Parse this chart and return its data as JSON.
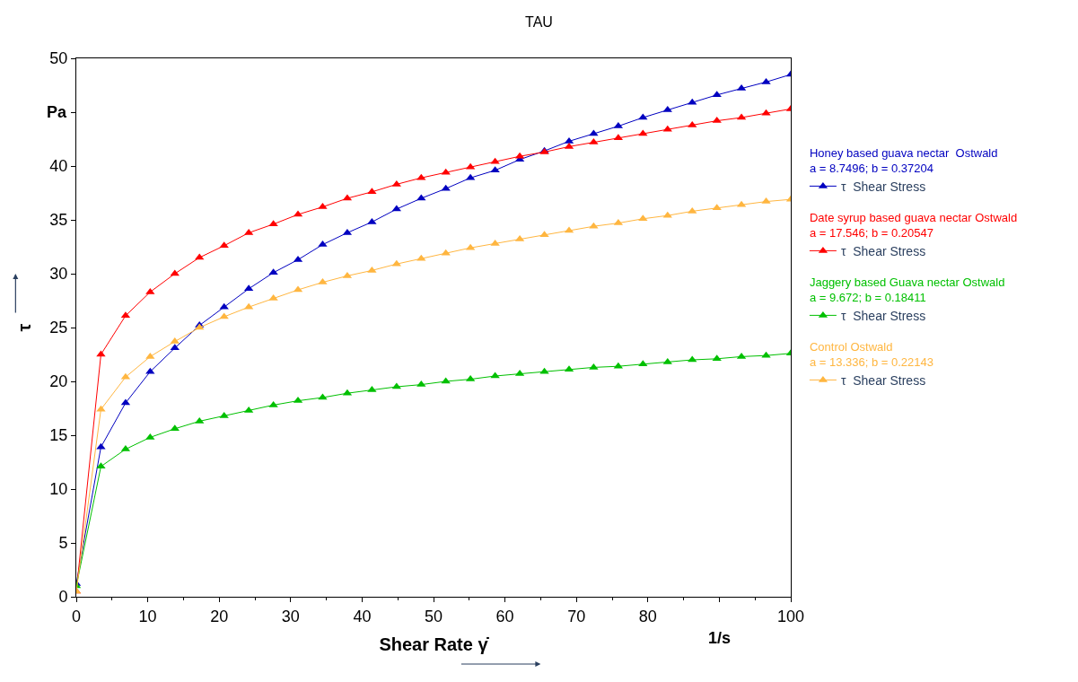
{
  "chart_data": {
    "type": "line",
    "title": "TAU",
    "xlabel": "Shear Rate γ̇",
    "ylabel": "τ",
    "x": [
      0,
      3.45,
      6.9,
      10.34,
      13.79,
      17.24,
      20.69,
      24.14,
      27.59,
      31.03,
      34.48,
      37.93,
      41.38,
      44.83,
      48.28,
      51.72,
      55.17,
      58.62,
      62.07,
      65.52,
      68.97,
      72.41,
      75.86,
      79.31,
      82.76,
      86.21,
      89.66,
      93.1,
      96.55,
      100
    ],
    "series": [
      {
        "name": "τ  Shear Stress",
        "color": "#0000c0",
        "values": [
          1.2,
          13.9,
          18.0,
          20.9,
          23.1,
          25.2,
          26.9,
          28.6,
          30.1,
          31.3,
          32.7,
          33.8,
          34.8,
          36.0,
          37.0,
          37.9,
          38.9,
          39.6,
          40.6,
          41.4,
          42.3,
          43.0,
          43.7,
          44.5,
          45.2,
          45.9,
          46.6,
          47.2,
          47.8,
          48.5
        ]
      },
      {
        "name": "τ  Shear Stress",
        "color": "#ff0000",
        "values": [
          0.5,
          22.5,
          26.1,
          28.3,
          30.0,
          31.5,
          32.6,
          33.8,
          34.6,
          35.5,
          36.2,
          37.0,
          37.6,
          38.3,
          38.9,
          39.4,
          39.9,
          40.4,
          40.9,
          41.3,
          41.8,
          42.2,
          42.6,
          43.0,
          43.4,
          43.8,
          44.2,
          44.5,
          44.9,
          45.3
        ]
      },
      {
        "name": "τ  Shear Stress",
        "color": "#00c000",
        "values": [
          1.0,
          12.1,
          13.7,
          14.8,
          15.6,
          16.3,
          16.8,
          17.3,
          17.8,
          18.2,
          18.5,
          18.9,
          19.2,
          19.5,
          19.7,
          20.0,
          20.2,
          20.5,
          20.7,
          20.9,
          21.1,
          21.3,
          21.4,
          21.6,
          21.8,
          22.0,
          22.1,
          22.3,
          22.4,
          22.6
        ]
      },
      {
        "name": "τ  Shear Stress",
        "color": "#ffb640",
        "values": [
          0.5,
          17.4,
          20.4,
          22.3,
          23.7,
          25.0,
          26.0,
          26.9,
          27.7,
          28.5,
          29.2,
          29.8,
          30.3,
          30.9,
          31.4,
          31.9,
          32.4,
          32.8,
          33.2,
          33.6,
          34.0,
          34.4,
          34.7,
          35.1,
          35.4,
          35.8,
          36.1,
          36.4,
          36.7,
          36.9
        ]
      }
    ],
    "xlim": [
      0,
      100
    ],
    "xticks": [
      0,
      10,
      20,
      30,
      40,
      50,
      60,
      70,
      80,
      {
        "value": 90,
        "label": null
      },
      100
    ],
    "ylim": [
      0,
      50
    ],
    "yticks": [
      0,
      5,
      10,
      15,
      20,
      25,
      30,
      35,
      40,
      {
        "value": 45,
        "label": null
      },
      50
    ],
    "annotations": [
      "Honey based guava nectar  Ostwald",
      "a = 8.7496; b = 0.37204",
      "Date syrup based guava nectar Ostwald",
      "a = 17.546; b = 0.20547",
      "Jaggery based Guava nectar Ostwald",
      "a = 9.672; b = 0.18411",
      "Control Ostwald",
      "a = 13.336; b = 0.22143",
      "Pa",
      "1/s"
    ],
    "legend": "right",
    "marker": "triangle",
    "line_style": "solid"
  }
}
